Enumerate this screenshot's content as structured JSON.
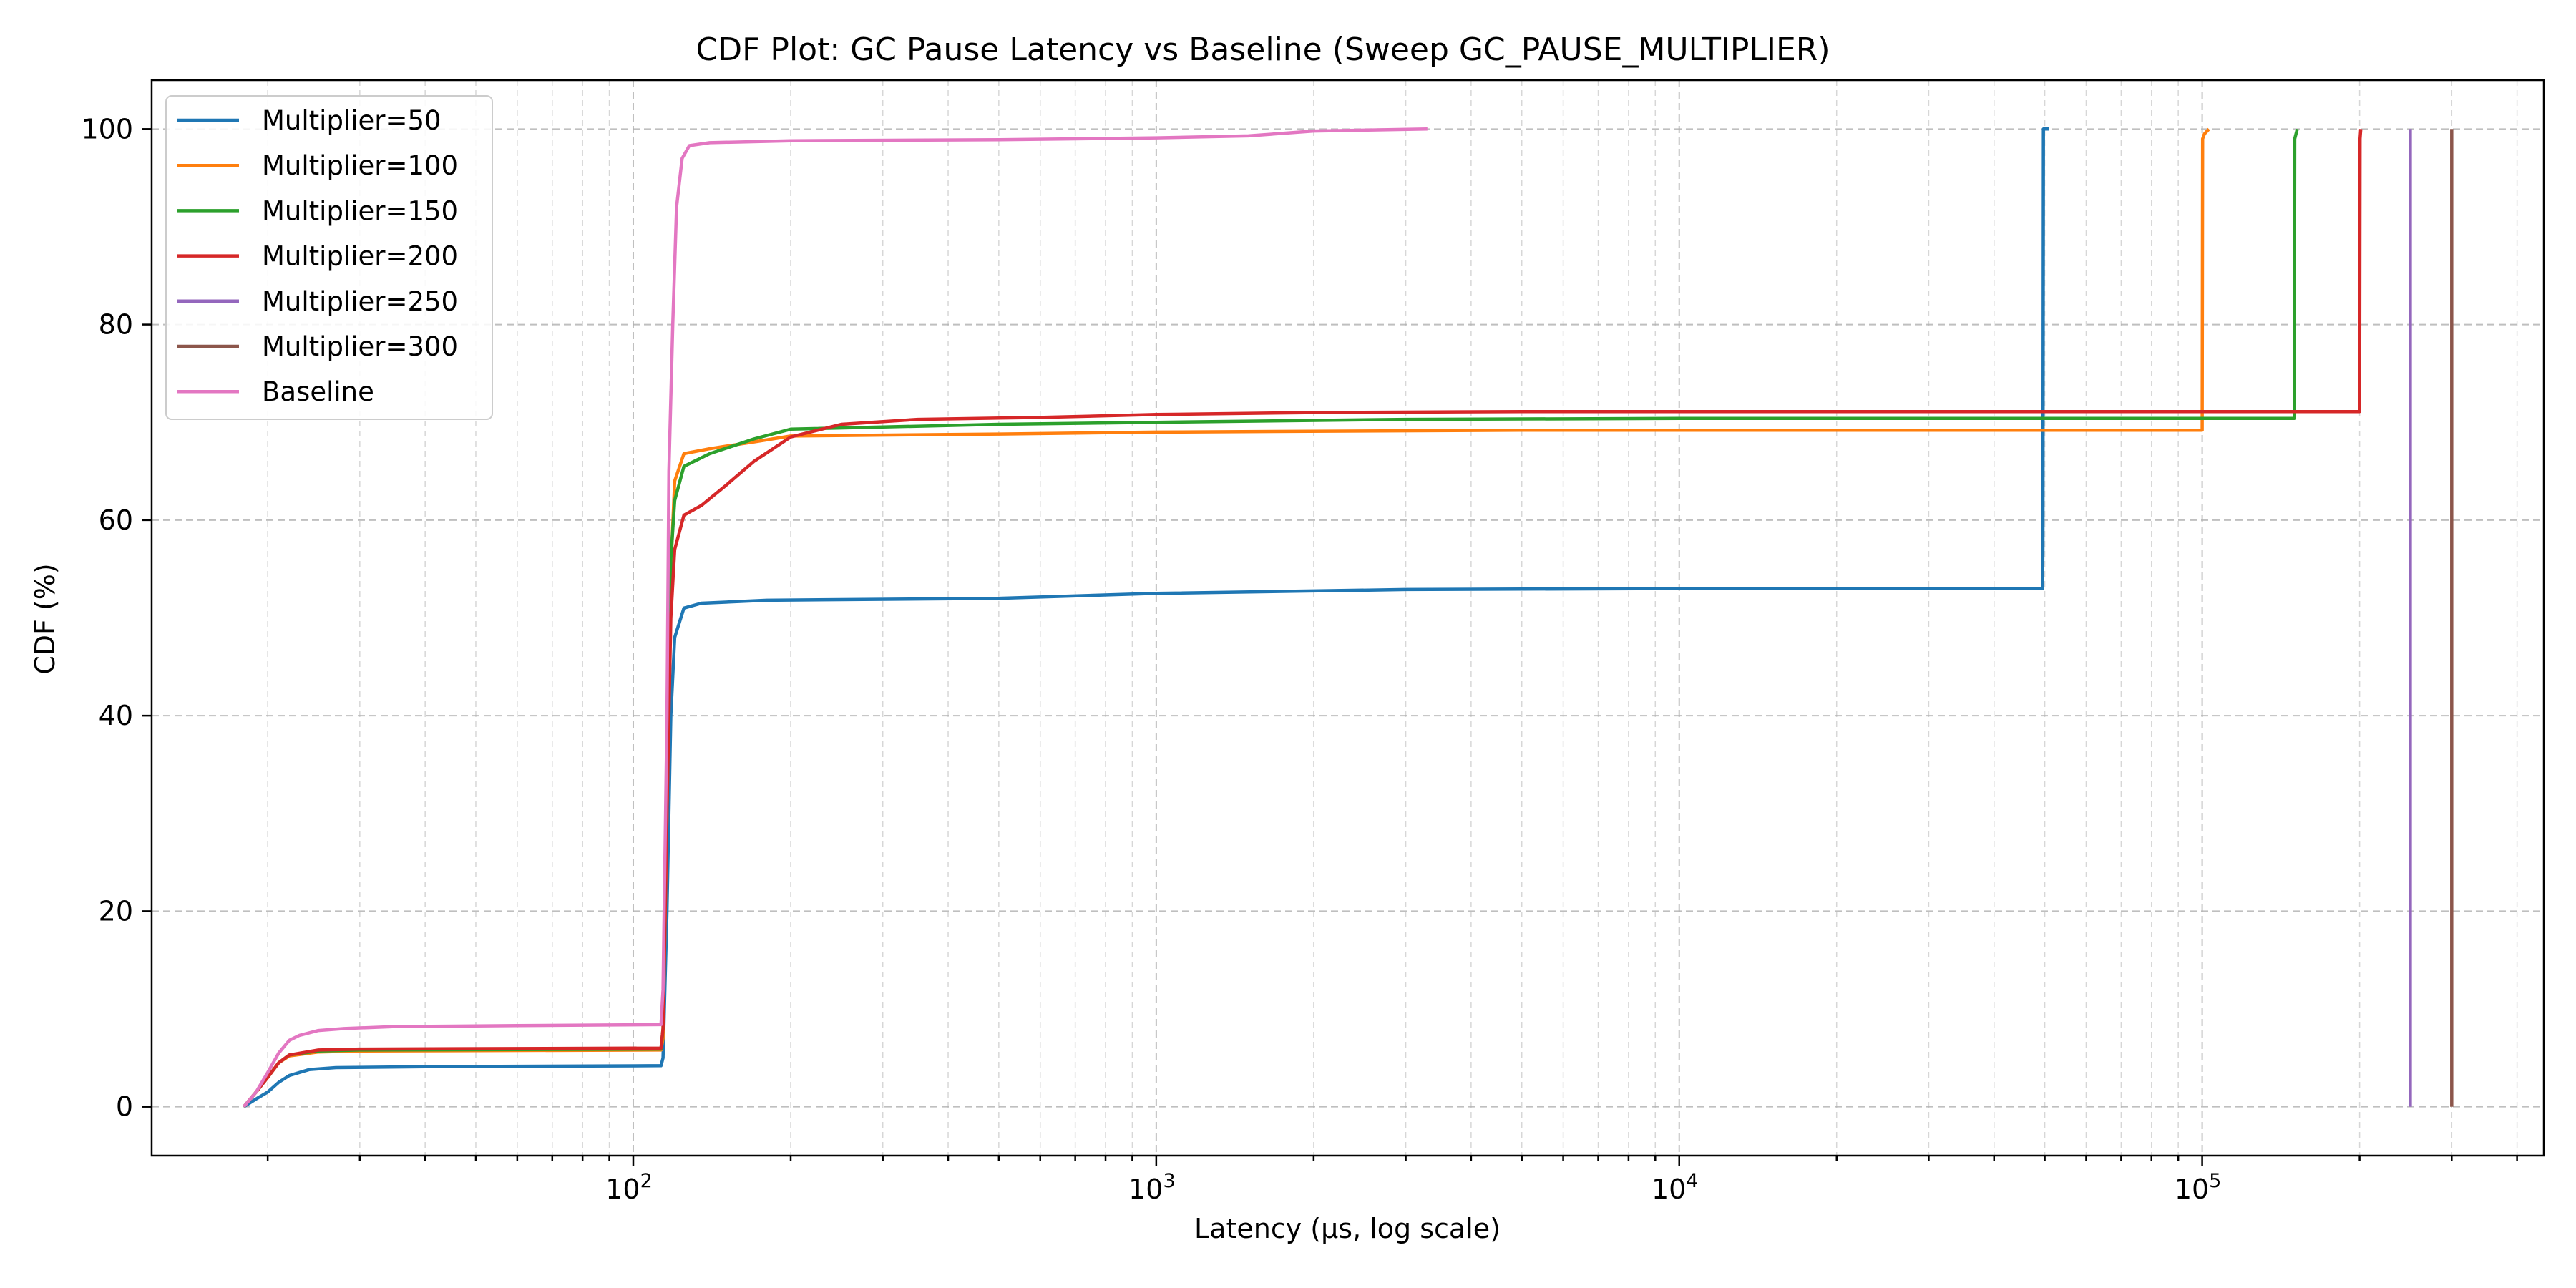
{
  "chart_data": {
    "type": "line",
    "title": "CDF Plot: GC Pause Latency vs Baseline (Sweep GC_PAUSE_MULTIPLIER)",
    "xlabel": "Latency (µs, log scale)",
    "ylabel": "CDF (%)",
    "x_scale": "log",
    "xlim": [
      12,
      450000
    ],
    "ylim": [
      -5,
      105
    ],
    "x_ticks": [
      {
        "base": "10",
        "exp": "2",
        "value": 100
      },
      {
        "base": "10",
        "exp": "3",
        "value": 1000
      },
      {
        "base": "10",
        "exp": "4",
        "value": 10000
      },
      {
        "base": "10",
        "exp": "5",
        "value": 100000
      }
    ],
    "y_ticks": [
      0,
      20,
      40,
      60,
      80,
      100
    ],
    "grid": "on (major and minor, dashed)",
    "legend_position": "top-left",
    "series": [
      {
        "name": "Multiplier=50",
        "color": "#1f77b4",
        "points": [
          [
            18,
            0
          ],
          [
            19,
            0.8
          ],
          [
            20,
            1.5
          ],
          [
            21,
            2.5
          ],
          [
            22,
            3.2
          ],
          [
            24,
            3.8
          ],
          [
            27,
            4.0
          ],
          [
            40,
            4.1
          ],
          [
            113,
            4.2
          ],
          [
            114,
            5
          ],
          [
            116,
            20
          ],
          [
            118,
            40
          ],
          [
            120,
            48
          ],
          [
            125,
            51
          ],
          [
            135,
            51.5
          ],
          [
            180,
            51.8
          ],
          [
            500,
            52.0
          ],
          [
            1000,
            52.5
          ],
          [
            3000,
            52.9
          ],
          [
            10000,
            53.0
          ],
          [
            49500,
            53.0
          ],
          [
            49600,
            57
          ],
          [
            49700,
            100
          ],
          [
            51000,
            100
          ]
        ]
      },
      {
        "name": "Multiplier=100",
        "color": "#ff7f0e",
        "points": [
          [
            18,
            0
          ],
          [
            19,
            1.5
          ],
          [
            20,
            3
          ],
          [
            21,
            4.5
          ],
          [
            22,
            5.2
          ],
          [
            25,
            5.6
          ],
          [
            30,
            5.7
          ],
          [
            113,
            5.8
          ],
          [
            114,
            7
          ],
          [
            116,
            30
          ],
          [
            118,
            55
          ],
          [
            120,
            64
          ],
          [
            125,
            66.8
          ],
          [
            140,
            67.3
          ],
          [
            170,
            68
          ],
          [
            200,
            68.6
          ],
          [
            500,
            68.8
          ],
          [
            1000,
            69.0
          ],
          [
            5000,
            69.2
          ],
          [
            100000,
            69.2
          ],
          [
            100200,
            99
          ],
          [
            101000,
            99.5
          ],
          [
            103000,
            100
          ]
        ]
      },
      {
        "name": "Multiplier=150",
        "color": "#2ca02c",
        "points": [
          [
            18,
            0
          ],
          [
            19,
            1.5
          ],
          [
            20,
            3
          ],
          [
            21,
            4.5
          ],
          [
            22,
            5.3
          ],
          [
            25,
            5.7
          ],
          [
            30,
            5.8
          ],
          [
            113,
            5.9
          ],
          [
            114,
            8
          ],
          [
            116,
            35
          ],
          [
            118,
            56
          ],
          [
            120,
            62
          ],
          [
            125,
            65.5
          ],
          [
            140,
            66.8
          ],
          [
            170,
            68.3
          ],
          [
            200,
            69.3
          ],
          [
            500,
            69.8
          ],
          [
            1000,
            70.0
          ],
          [
            3000,
            70.3
          ],
          [
            10000,
            70.4
          ],
          [
            150000,
            70.4
          ],
          [
            150300,
            99
          ],
          [
            152000,
            100
          ]
        ]
      },
      {
        "name": "Multiplier=200",
        "color": "#d62728",
        "points": [
          [
            18,
            0
          ],
          [
            19,
            1.5
          ],
          [
            20,
            3
          ],
          [
            21,
            4.5
          ],
          [
            22,
            5.3
          ],
          [
            25,
            5.8
          ],
          [
            30,
            5.9
          ],
          [
            113,
            6.0
          ],
          [
            114,
            8
          ],
          [
            116,
            30
          ],
          [
            118,
            50
          ],
          [
            120,
            57
          ],
          [
            125,
            60.5
          ],
          [
            135,
            61.5
          ],
          [
            150,
            63.5
          ],
          [
            170,
            66
          ],
          [
            200,
            68.5
          ],
          [
            250,
            69.8
          ],
          [
            350,
            70.3
          ],
          [
            600,
            70.5
          ],
          [
            1000,
            70.8
          ],
          [
            2000,
            71.0
          ],
          [
            5000,
            71.1
          ],
          [
            200000,
            71.1
          ],
          [
            200400,
            99
          ],
          [
            201000,
            100
          ]
        ]
      },
      {
        "name": "Multiplier=250",
        "color": "#9467bd",
        "points": [
          [
            250000,
            0
          ],
          [
            250000,
            100
          ]
        ]
      },
      {
        "name": "Multiplier=300",
        "color": "#8c564b",
        "points": [
          [
            300000,
            0
          ],
          [
            300000,
            100
          ]
        ]
      },
      {
        "name": "Baseline",
        "color": "#e377c2",
        "points": [
          [
            18,
            0
          ],
          [
            19,
            1.5
          ],
          [
            20,
            3.5
          ],
          [
            21,
            5.5
          ],
          [
            22,
            6.8
          ],
          [
            23,
            7.3
          ],
          [
            25,
            7.8
          ],
          [
            28,
            8.0
          ],
          [
            35,
            8.2
          ],
          [
            60,
            8.3
          ],
          [
            113,
            8.4
          ],
          [
            114,
            12
          ],
          [
            116,
            40
          ],
          [
            117,
            65
          ],
          [
            119,
            80
          ],
          [
            121,
            92
          ],
          [
            124,
            97
          ],
          [
            128,
            98.3
          ],
          [
            140,
            98.6
          ],
          [
            200,
            98.8
          ],
          [
            500,
            98.9
          ],
          [
            1000,
            99.1
          ],
          [
            1500,
            99.3
          ],
          [
            2000,
            99.8
          ],
          [
            3300,
            100
          ]
        ]
      }
    ]
  }
}
